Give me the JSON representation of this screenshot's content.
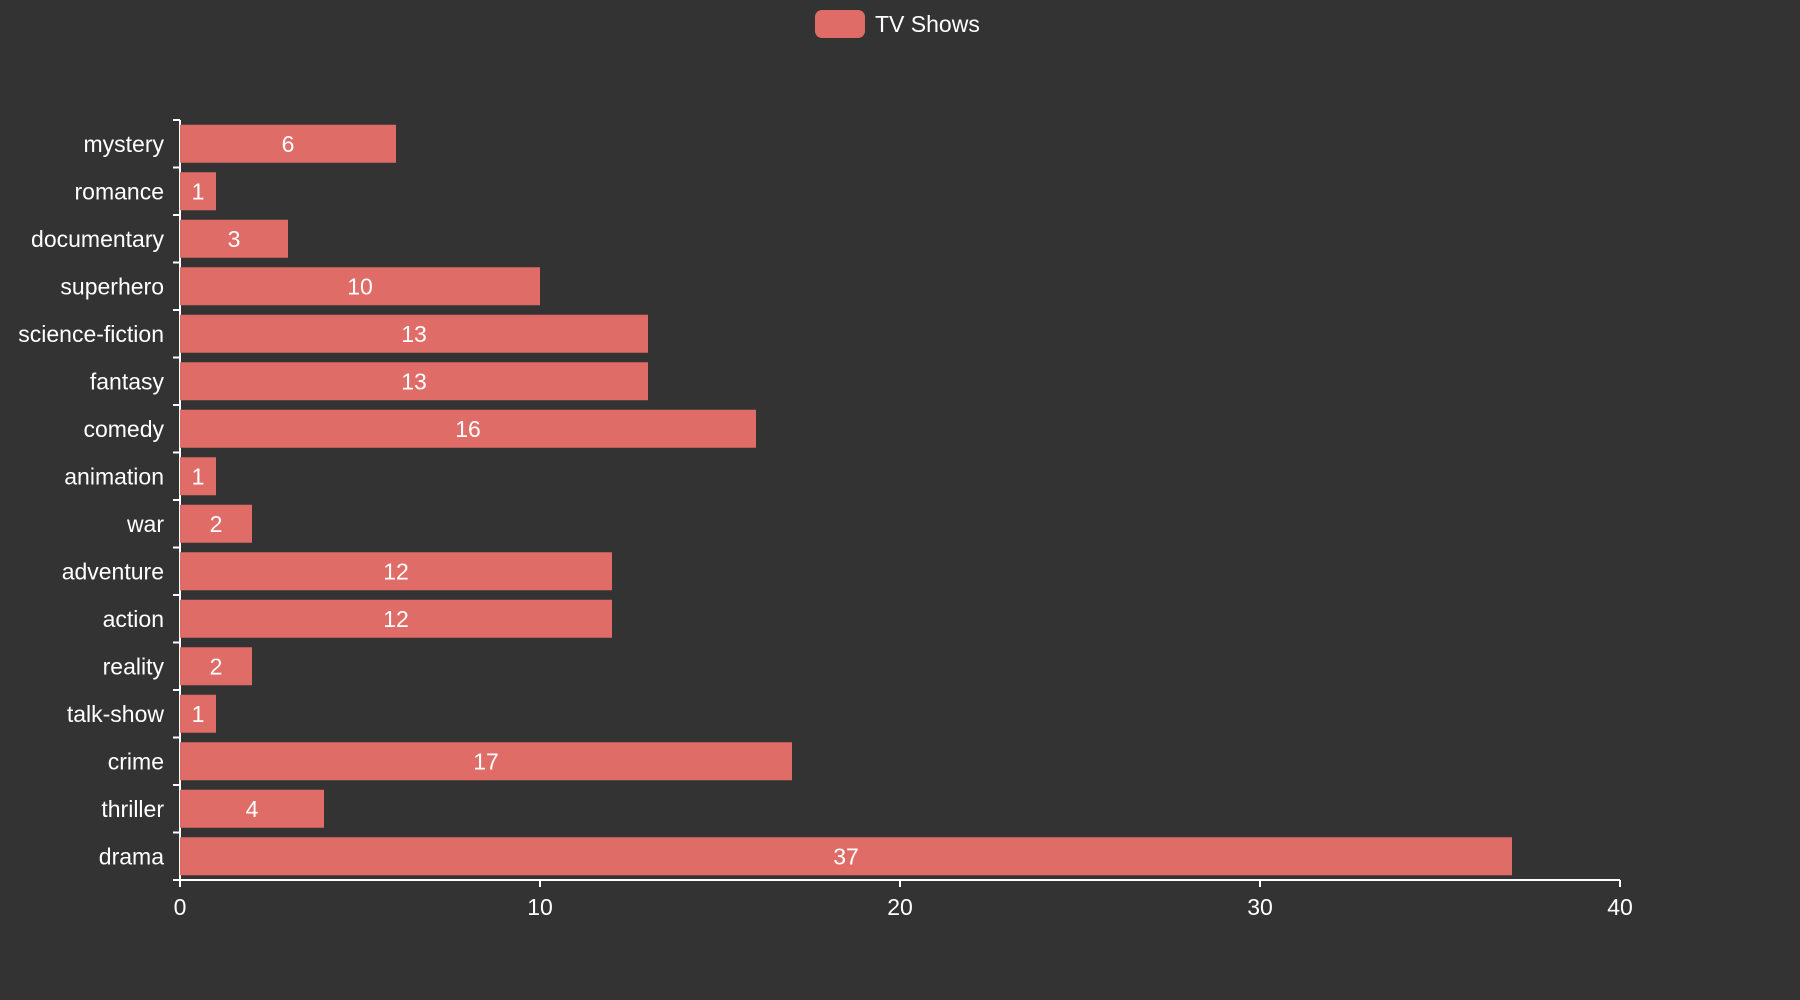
{
  "colors": {
    "background": "#333333",
    "bar": "#e06c68",
    "axis": "#ffffff",
    "text": "#ffffff"
  },
  "chart_data": {
    "type": "bar",
    "orientation": "horizontal",
    "categories": [
      "mystery",
      "romance",
      "documentary",
      "superhero",
      "science-fiction",
      "fantasy",
      "comedy",
      "animation",
      "war",
      "adventure",
      "action",
      "reality",
      "talk-show",
      "crime",
      "thriller",
      "drama"
    ],
    "series": [
      {
        "name": "TV Shows",
        "values": [
          6,
          1,
          3,
          10,
          13,
          13,
          16,
          1,
          2,
          12,
          12,
          2,
          1,
          17,
          4,
          37
        ]
      }
    ],
    "xlim": [
      0,
      40
    ],
    "xticks": [
      0,
      10,
      20,
      30,
      40
    ],
    "legend": {
      "position": "top-center",
      "entries": [
        "TV Shows"
      ]
    },
    "grid": false,
    "data_labels": true
  }
}
